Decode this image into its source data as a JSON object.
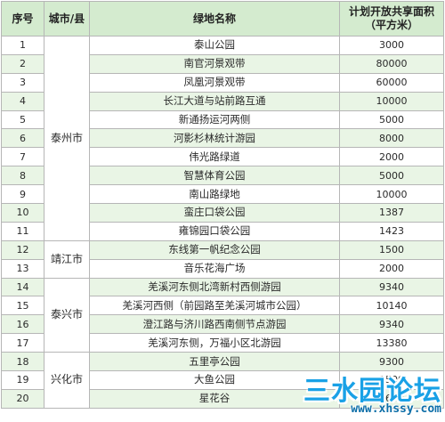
{
  "headers": {
    "no": "序号",
    "city": "城市/县",
    "green_name": "绿地名称",
    "area_line1": "计划开放共享面积",
    "area_line2": "（平方米）"
  },
  "groups": [
    {
      "city": "泰州市",
      "rows": [
        {
          "no": "1",
          "name": "泰山公园",
          "area": "3000"
        },
        {
          "no": "2",
          "name": "南官河景观带",
          "area": "80000"
        },
        {
          "no": "3",
          "name": "凤凰河景观带",
          "area": "60000"
        },
        {
          "no": "4",
          "name": "长江大道与站前路互通",
          "area": "10000"
        },
        {
          "no": "5",
          "name": "新通扬运河两侧",
          "area": "5000"
        },
        {
          "no": "6",
          "name": "河影杉林统计游园",
          "area": "8000"
        },
        {
          "no": "7",
          "name": "伟光路绿道",
          "area": "2000"
        },
        {
          "no": "8",
          "name": "智慧体育公园",
          "area": "5000"
        },
        {
          "no": "9",
          "name": "南山路绿地",
          "area": "10000"
        },
        {
          "no": "10",
          "name": "蛮庄口袋公园",
          "area": "1387"
        },
        {
          "no": "11",
          "name": "雍锦园口袋公园",
          "area": "1423"
        }
      ]
    },
    {
      "city": "靖江市",
      "rows": [
        {
          "no": "12",
          "name": "东线第一帆纪念公园",
          "area": "1500"
        },
        {
          "no": "13",
          "name": "音乐花海广场",
          "area": "2000"
        }
      ]
    },
    {
      "city": "泰兴市",
      "rows": [
        {
          "no": "14",
          "name": "羌溪河东侧北湾新村西侧游园",
          "area": "9340"
        },
        {
          "no": "15",
          "name": "羌溪河西侧（前园路至羌溪河城市公园）",
          "area": "10140"
        },
        {
          "no": "16",
          "name": "澄江路与济川路西南侧节点游园",
          "area": "9340"
        },
        {
          "no": "17",
          "name": "羌溪河东侧，万福小区北游园",
          "area": "13380"
        }
      ]
    },
    {
      "city": "兴化市",
      "rows": [
        {
          "no": "18",
          "name": "五里亭公园",
          "area": "9300"
        },
        {
          "no": "19",
          "name": "大鱼公园",
          "area": "1500"
        },
        {
          "no": "20",
          "name": "星花谷",
          "area": "1660"
        }
      ]
    }
  ],
  "watermark": {
    "logo": "三水园论坛",
    "url": "www.xhssy.com"
  }
}
